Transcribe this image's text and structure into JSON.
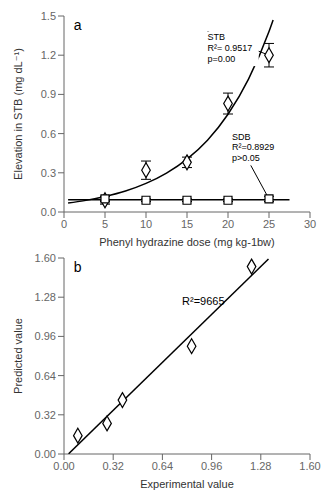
{
  "chart_data": [
    {
      "type": "scatter",
      "title": "a",
      "xlabel": "Phenyl hydrazine dose (mg kg-1bw)",
      "ylabel": "Elevation in STB (mg dL⁻¹)",
      "xlim": [
        0,
        30
      ],
      "ylim": [
        0,
        1.5
      ],
      "xticks": [
        0,
        5,
        10,
        15,
        20,
        25,
        30
      ],
      "yticks": [
        {
          "value": 0,
          "label": "0.0"
        },
        0.3,
        0.6,
        0.9,
        1.2,
        1.5
      ],
      "series": [
        {
          "type": "line",
          "color": "#000000",
          "x": [
            0.5,
            2.5,
            5,
            7.5,
            10,
            12.5,
            15,
            17.5,
            20,
            22.5,
            25,
            25.5
          ],
          "values": [
            0.068,
            0.087,
            0.119,
            0.161,
            0.219,
            0.298,
            0.405,
            0.55,
            0.748,
            1.017,
            1.381,
            1.469
          ]
        },
        {
          "type": "line",
          "color": "#000000",
          "x": [
            0.5,
            27.5
          ],
          "values": [
            0.094,
            0.094
          ]
        },
        {
          "type": "scatter",
          "marker": "diamond",
          "color": "#000000",
          "x": [
            5,
            10,
            15,
            20,
            25
          ],
          "values": [
            0.09,
            0.32,
            0.38,
            0.83,
            1.2
          ],
          "errors": [
            0.03,
            0.07,
            0.04,
            0.08,
            0.09
          ]
        },
        {
          "type": "scatter",
          "marker": "square",
          "color": "#000000",
          "x": [
            5,
            10,
            15,
            20,
            25
          ],
          "values": [
            0.1,
            0.09,
            0.09,
            0.09,
            0.1
          ],
          "errors": [
            0.02,
            0.01,
            0.01,
            0.01,
            0.02
          ]
        }
      ],
      "annotations": [
        {
          "text": "STB\nR²= 0.9517\np=0.00",
          "x": 25.0,
          "y": 1.2,
          "text_x": 17.5,
          "text_y": 1.38
        },
        {
          "text": "SDB\nR²=0.8929\np>0.05",
          "x": 25.0,
          "y": 0.1,
          "text_x": 20.5,
          "text_y": 0.62
        }
      ]
    },
    {
      "type": "scatter",
      "title": "b",
      "xlabel": "Experimental value",
      "ylabel": "Predicted value",
      "xlim": [
        0,
        1.6
      ],
      "ylim": [
        0,
        1.6
      ],
      "xticks": [
        {
          "value": 0,
          "label": "0.00"
        },
        0.32,
        0.64,
        0.96,
        1.28,
        {
          "value": 1.6,
          "label": "1.60"
        }
      ],
      "yticks": [
        {
          "value": 0,
          "label": "0.00"
        },
        0.32,
        0.64,
        0.96,
        1.28,
        {
          "value": 1.6,
          "label": "1.60"
        }
      ],
      "series": [
        {
          "type": "line",
          "color": "#000000",
          "x": [
            0.03,
            1.33
          ],
          "values": [
            0.0017,
            1.5918
          ]
        },
        {
          "type": "scatter",
          "marker": "diamond",
          "color": "#000000",
          "x": [
            0.09,
            0.28,
            0.38,
            0.83,
            1.22
          ],
          "values": [
            0.15,
            0.25,
            0.44,
            0.88,
            1.53
          ]
        }
      ],
      "annotations": [
        {
          "text": "R²=9665"
        }
      ]
    }
  ]
}
